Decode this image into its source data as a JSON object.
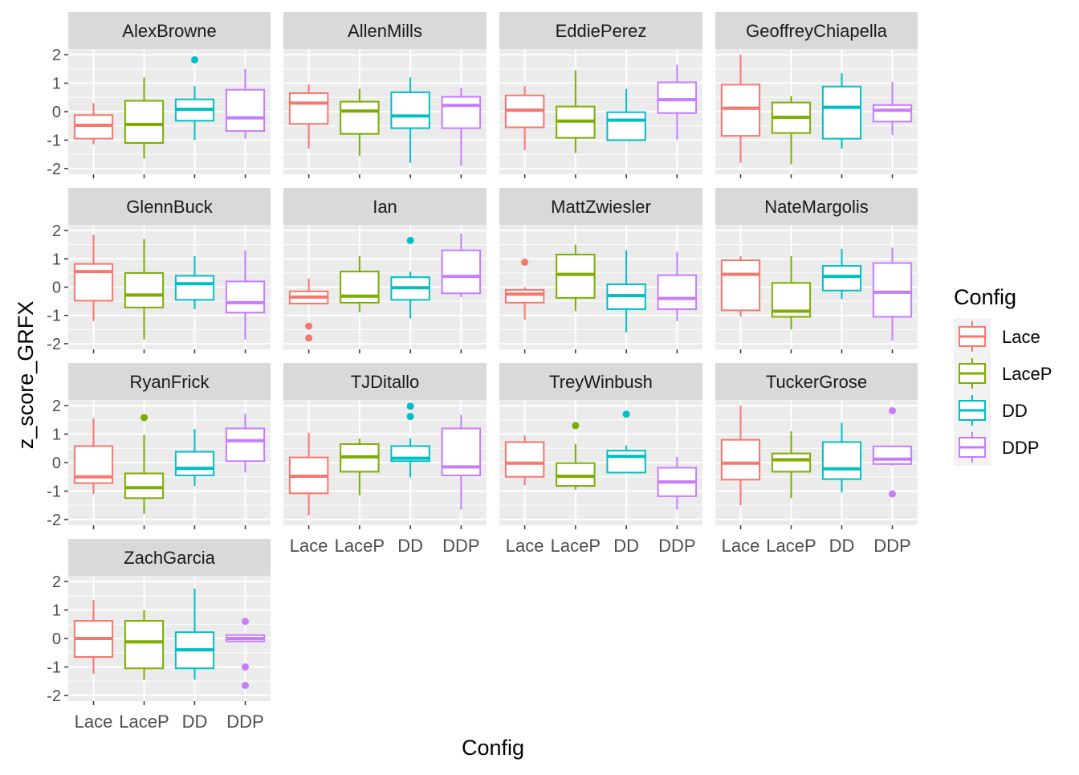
{
  "chart_data": {
    "type": "boxplot",
    "facet_by": "subject",
    "facet_layout": "4 columns",
    "xlabel": "Config",
    "ylabel": "z_score_GRFX",
    "categories": [
      "Lace",
      "LaceP",
      "DD",
      "DDP"
    ],
    "ylim": [
      -2.2,
      2.2
    ],
    "y_ticks": [
      -2,
      -1,
      0,
      1,
      2
    ],
    "y_tick_labels": [
      "-2",
      "-1",
      "0",
      "1",
      "2"
    ],
    "grid": true,
    "legend": {
      "title": "Config",
      "placement": "right",
      "entries": [
        "Lace",
        "LaceP",
        "DD",
        "DDP"
      ]
    },
    "colors": {
      "Lace": "#F8766D",
      "LaceP": "#7CAE00",
      "DD": "#00BFC4",
      "DDP": "#C77CFF",
      "panel_bg": "#EBEBEB",
      "strip_bg": "#D9D9D9",
      "grid": "#FFFFFF"
    },
    "panels": [
      {
        "name": "AlexBrowne",
        "boxes": [
          {
            "config": "Lace",
            "min": -1.15,
            "q1": -0.95,
            "median": -0.48,
            "q3": -0.12,
            "max": 0.3,
            "outliers": []
          },
          {
            "config": "LaceP",
            "min": -1.65,
            "q1": -1.1,
            "median": -0.45,
            "q3": 0.38,
            "max": 1.2,
            "outliers": []
          },
          {
            "config": "DD",
            "min": -1.0,
            "q1": -0.32,
            "median": 0.08,
            "q3": 0.43,
            "max": 0.9,
            "outliers": [
              1.82
            ]
          },
          {
            "config": "DDP",
            "min": -0.95,
            "q1": -0.68,
            "median": -0.22,
            "q3": 0.77,
            "max": 1.5,
            "outliers": []
          }
        ]
      },
      {
        "name": "AllenMills",
        "boxes": [
          {
            "config": "Lace",
            "min": -1.3,
            "q1": -0.43,
            "median": 0.3,
            "q3": 0.65,
            "max": 0.95,
            "outliers": []
          },
          {
            "config": "LaceP",
            "min": -1.55,
            "q1": -0.78,
            "median": 0.02,
            "q3": 0.35,
            "max": 0.8,
            "outliers": []
          },
          {
            "config": "DD",
            "min": -1.8,
            "q1": -0.58,
            "median": -0.15,
            "q3": 0.68,
            "max": 1.2,
            "outliers": []
          },
          {
            "config": "DDP",
            "min": -1.9,
            "q1": -0.58,
            "median": 0.22,
            "q3": 0.52,
            "max": 0.85,
            "outliers": []
          }
        ]
      },
      {
        "name": "EddiePerez",
        "boxes": [
          {
            "config": "Lace",
            "min": -1.35,
            "q1": -0.55,
            "median": 0.05,
            "q3": 0.57,
            "max": 0.9,
            "outliers": []
          },
          {
            "config": "LaceP",
            "min": -1.45,
            "q1": -0.92,
            "median": -0.33,
            "q3": 0.18,
            "max": 1.45,
            "outliers": []
          },
          {
            "config": "DD",
            "min": -1.0,
            "q1": -1.0,
            "median": -0.3,
            "q3": -0.02,
            "max": 0.8,
            "outliers": []
          },
          {
            "config": "DDP",
            "min": -1.0,
            "q1": -0.05,
            "median": 0.42,
            "q3": 1.03,
            "max": 1.65,
            "outliers": []
          }
        ]
      },
      {
        "name": "GeoffreyChiapella",
        "boxes": [
          {
            "config": "Lace",
            "min": -1.8,
            "q1": -0.85,
            "median": 0.12,
            "q3": 0.95,
            "max": 2.0,
            "outliers": []
          },
          {
            "config": "LaceP",
            "min": -1.85,
            "q1": -0.75,
            "median": -0.2,
            "q3": 0.32,
            "max": 0.55,
            "outliers": []
          },
          {
            "config": "DD",
            "min": -1.3,
            "q1": -0.95,
            "median": 0.15,
            "q3": 0.88,
            "max": 1.35,
            "outliers": []
          },
          {
            "config": "DDP",
            "min": -0.82,
            "q1": -0.35,
            "median": 0.05,
            "q3": 0.23,
            "max": 1.05,
            "outliers": []
          }
        ]
      },
      {
        "name": "GlennBuck",
        "boxes": [
          {
            "config": "Lace",
            "min": -1.2,
            "q1": -0.48,
            "median": 0.55,
            "q3": 0.82,
            "max": 1.85,
            "outliers": []
          },
          {
            "config": "LaceP",
            "min": -1.85,
            "q1": -0.72,
            "median": -0.28,
            "q3": 0.5,
            "max": 1.7,
            "outliers": []
          },
          {
            "config": "DD",
            "min": -0.78,
            "q1": -0.45,
            "median": 0.12,
            "q3": 0.4,
            "max": 1.1,
            "outliers": []
          },
          {
            "config": "DDP",
            "min": -1.85,
            "q1": -0.9,
            "median": -0.55,
            "q3": 0.2,
            "max": 1.3,
            "outliers": []
          }
        ]
      },
      {
        "name": "Ian",
        "boxes": [
          {
            "config": "Lace",
            "min": -0.58,
            "q1": -0.58,
            "median": -0.35,
            "q3": -0.15,
            "max": 0.3,
            "outliers": [
              -1.38,
              -1.8
            ]
          },
          {
            "config": "LaceP",
            "min": -0.88,
            "q1": -0.55,
            "median": -0.32,
            "q3": 0.55,
            "max": 1.1,
            "outliers": []
          },
          {
            "config": "DD",
            "min": -1.1,
            "q1": -0.45,
            "median": -0.02,
            "q3": 0.35,
            "max": 0.55,
            "outliers": [
              1.65
            ]
          },
          {
            "config": "DDP",
            "min": -0.35,
            "q1": -0.22,
            "median": 0.38,
            "q3": 1.3,
            "max": 1.9,
            "outliers": []
          }
        ]
      },
      {
        "name": "MattZwiesler",
        "boxes": [
          {
            "config": "Lace",
            "min": -1.15,
            "q1": -0.55,
            "median": -0.25,
            "q3": -0.1,
            "max": 0.0,
            "outliers": [
              0.88
            ]
          },
          {
            "config": "LaceP",
            "min": -0.85,
            "q1": -0.38,
            "median": 0.45,
            "q3": 1.15,
            "max": 1.5,
            "outliers": []
          },
          {
            "config": "DD",
            "min": -1.6,
            "q1": -0.78,
            "median": -0.3,
            "q3": 0.1,
            "max": 1.3,
            "outliers": []
          },
          {
            "config": "DDP",
            "min": -1.2,
            "q1": -0.78,
            "median": -0.4,
            "q3": 0.42,
            "max": 1.25,
            "outliers": []
          }
        ]
      },
      {
        "name": "NateMargolis",
        "boxes": [
          {
            "config": "Lace",
            "min": -1.05,
            "q1": -0.82,
            "median": 0.45,
            "q3": 0.95,
            "max": 1.1,
            "outliers": []
          },
          {
            "config": "LaceP",
            "min": -1.5,
            "q1": -1.05,
            "median": -0.85,
            "q3": 0.15,
            "max": 1.1,
            "outliers": []
          },
          {
            "config": "DD",
            "min": -0.42,
            "q1": -0.12,
            "median": 0.38,
            "q3": 0.75,
            "max": 1.35,
            "outliers": []
          },
          {
            "config": "DDP",
            "min": -1.9,
            "q1": -1.05,
            "median": -0.18,
            "q3": 0.85,
            "max": 1.4,
            "outliers": []
          }
        ]
      },
      {
        "name": "RyanFrick",
        "boxes": [
          {
            "config": "Lace",
            "min": -1.1,
            "q1": -0.72,
            "median": -0.5,
            "q3": 0.58,
            "max": 1.55,
            "outliers": []
          },
          {
            "config": "LaceP",
            "min": -1.8,
            "q1": -1.25,
            "median": -0.88,
            "q3": -0.38,
            "max": 0.98,
            "outliers": [
              1.58
            ]
          },
          {
            "config": "DD",
            "min": -0.82,
            "q1": -0.45,
            "median": -0.2,
            "q3": 0.38,
            "max": 1.18,
            "outliers": []
          },
          {
            "config": "DDP",
            "min": -0.35,
            "q1": 0.05,
            "median": 0.77,
            "q3": 1.2,
            "max": 1.72,
            "outliers": []
          }
        ]
      },
      {
        "name": "TJDitallo",
        "boxes": [
          {
            "config": "Lace",
            "min": -1.85,
            "q1": -1.08,
            "median": -0.48,
            "q3": 0.18,
            "max": 1.05,
            "outliers": []
          },
          {
            "config": "LaceP",
            "min": -1.15,
            "q1": -0.32,
            "median": 0.2,
            "q3": 0.65,
            "max": 0.85,
            "outliers": []
          },
          {
            "config": "DD",
            "min": -0.52,
            "q1": 0.05,
            "median": 0.15,
            "q3": 0.58,
            "max": 0.85,
            "outliers": [
              1.98,
              1.62
            ]
          },
          {
            "config": "DDP",
            "min": -1.65,
            "q1": -0.45,
            "median": -0.15,
            "q3": 1.2,
            "max": 1.68,
            "outliers": []
          }
        ]
      },
      {
        "name": "TreyWinbush",
        "boxes": [
          {
            "config": "Lace",
            "min": -0.8,
            "q1": -0.5,
            "median": -0.02,
            "q3": 0.72,
            "max": 0.95,
            "outliers": []
          },
          {
            "config": "LaceP",
            "min": -0.95,
            "q1": -0.82,
            "median": -0.48,
            "q3": -0.02,
            "max": 0.65,
            "outliers": [
              1.3
            ]
          },
          {
            "config": "DD",
            "min": -0.35,
            "q1": -0.35,
            "median": 0.22,
            "q3": 0.42,
            "max": 0.6,
            "outliers": [
              1.7
            ]
          },
          {
            "config": "DDP",
            "min": -1.65,
            "q1": -1.18,
            "median": -0.68,
            "q3": -0.18,
            "max": 0.2,
            "outliers": []
          }
        ]
      },
      {
        "name": "TuckerGrose",
        "boxes": [
          {
            "config": "Lace",
            "min": -1.5,
            "q1": -0.6,
            "median": -0.02,
            "q3": 0.8,
            "max": 2.0,
            "outliers": []
          },
          {
            "config": "LaceP",
            "min": -1.25,
            "q1": -0.32,
            "median": 0.1,
            "q3": 0.32,
            "max": 1.1,
            "outliers": []
          },
          {
            "config": "DD",
            "min": -1.05,
            "q1": -0.58,
            "median": -0.22,
            "q3": 0.72,
            "max": 1.4,
            "outliers": []
          },
          {
            "config": "DDP",
            "min": -0.1,
            "q1": -0.05,
            "median": 0.12,
            "q3": 0.57,
            "max": 0.6,
            "outliers": [
              1.82,
              -1.1
            ]
          }
        ]
      },
      {
        "name": "ZachGarcia",
        "boxes": [
          {
            "config": "Lace",
            "min": -1.25,
            "q1": -0.65,
            "median": 0.0,
            "q3": 0.62,
            "max": 1.35,
            "outliers": []
          },
          {
            "config": "LaceP",
            "min": -1.45,
            "q1": -1.05,
            "median": -0.12,
            "q3": 0.62,
            "max": 1.0,
            "outliers": []
          },
          {
            "config": "DD",
            "min": -1.45,
            "q1": -1.05,
            "median": -0.4,
            "q3": 0.22,
            "max": 1.75,
            "outliers": []
          },
          {
            "config": "DDP",
            "min": -0.1,
            "q1": -0.1,
            "median": 0.0,
            "q3": 0.12,
            "max": 0.15,
            "outliers": [
              0.6,
              -1.0,
              -1.65
            ]
          }
        ]
      }
    ]
  }
}
